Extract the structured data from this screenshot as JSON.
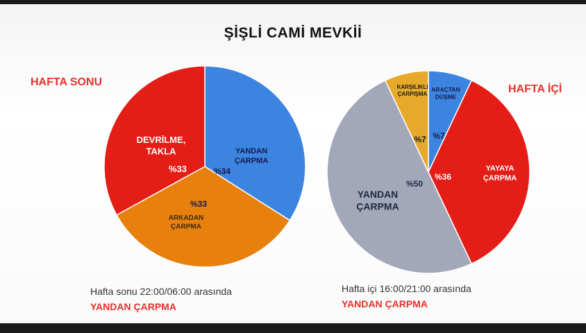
{
  "title": "ŞİŞLİ CAMİ MEVKİİ",
  "colors": {
    "blue": "#3b84e0",
    "orange": "#e8800e",
    "red": "#e51d17",
    "gold": "#e6a92a",
    "grey": "#a2a8ba",
    "heading_red": "#e8302a"
  },
  "chart_data": [
    {
      "type": "pie",
      "title": "HAFTA SONU",
      "slices": [
        {
          "label": "YANDAN ÇARPMA",
          "value": 34,
          "value_label": "%34",
          "color": "#3b84e0"
        },
        {
          "label": "ARKADAN ÇARPMA",
          "value": 33,
          "value_label": "%33",
          "color": "#e8800e"
        },
        {
          "label": "DEVRİLME, TAKLA",
          "value": 33,
          "value_label": "%33",
          "color": "#e51d17"
        }
      ],
      "caption": "Hafta sonu 22:00/06:00  arasında",
      "highlight": "YANDAN ÇARPMA"
    },
    {
      "type": "pie",
      "title": "HAFTA İÇİ",
      "slices": [
        {
          "label": "ARAÇTAN DÜŞME",
          "value": 7,
          "value_label": "%7",
          "color": "#3b84e0"
        },
        {
          "label": "YAYAYA ÇARPMA",
          "value": 36,
          "value_label": "%36",
          "color": "#e51d17"
        },
        {
          "label": "YANDAN ÇARPMA",
          "value": 50,
          "value_label": "%50",
          "color": "#a2a8ba"
        },
        {
          "label": "KARŞILIKLI ÇARPIŞMA",
          "value": 7,
          "value_label": "%7",
          "color": "#e6a92a"
        }
      ],
      "caption": "Hafta içi 16:00/21:00  arasında",
      "highlight": "YANDAN ÇARPMA"
    }
  ]
}
